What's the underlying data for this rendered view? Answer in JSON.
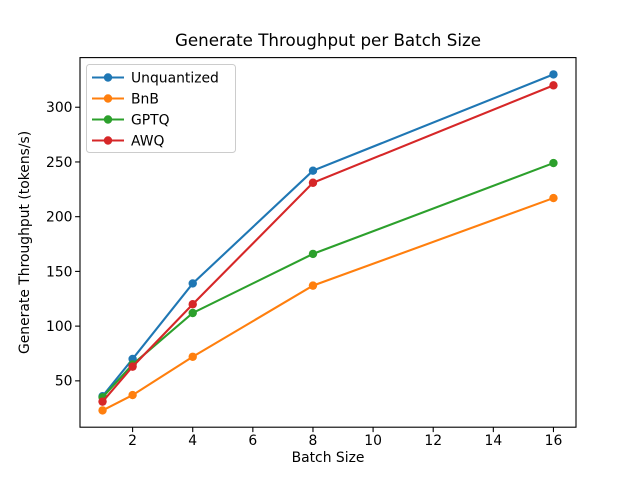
{
  "chart_data": {
    "type": "line",
    "title": "Generate Throughput per Batch Size",
    "xlabel": "Batch Size",
    "ylabel": "Generate Throughput (tokens/s)",
    "x": [
      1,
      2,
      4,
      8,
      16
    ],
    "series": [
      {
        "name": "Unquantized",
        "color": "#1f77b4",
        "values": [
          36,
          70,
          139,
          242,
          330
        ]
      },
      {
        "name": "BnB",
        "color": "#ff7f0e",
        "values": [
          23,
          37,
          72,
          137,
          217
        ]
      },
      {
        "name": "GPTQ",
        "color": "#2ca02c",
        "values": [
          35,
          65,
          112,
          166,
          249
        ]
      },
      {
        "name": "AWQ",
        "color": "#d62728",
        "values": [
          31,
          63,
          120,
          231,
          320
        ]
      }
    ],
    "xticks": [
      2,
      4,
      6,
      8,
      10,
      12,
      14,
      16
    ],
    "yticks": [
      50,
      100,
      150,
      200,
      250,
      300
    ],
    "xlim": [
      0.25,
      16.75
    ],
    "ylim": [
      7.65,
      345.35
    ],
    "grid": false,
    "marker": "o",
    "legend_position": "upper left",
    "colors": {
      "background": "#ffffff",
      "spine": "#000000",
      "legend_border": "#cccccc"
    }
  }
}
